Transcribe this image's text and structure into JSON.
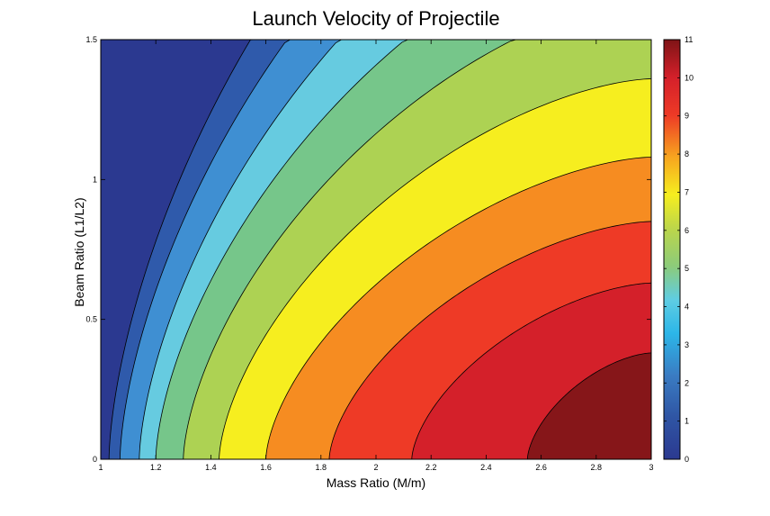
{
  "chart_data": {
    "type": "contourf",
    "title": "Launch Velocity of Projectile",
    "xlabel": "Mass Ratio (M/m)",
    "ylabel": "Beam Ratio (L1/L2)",
    "xlim": [
      1,
      3
    ],
    "ylim": [
      0,
      1.5
    ],
    "xticks": [
      "1",
      "1.2",
      "1.4",
      "1.6",
      "1.8",
      "2",
      "2.2",
      "2.4",
      "2.6",
      "2.8",
      "3"
    ],
    "yticks": [
      "0",
      "0.5",
      "1",
      "1.5"
    ],
    "colorbar": {
      "ticks": [
        "0",
        "1",
        "2",
        "3",
        "4",
        "5",
        "6",
        "7",
        "8",
        "9",
        "10",
        "11"
      ],
      "range": [
        0,
        11
      ],
      "colormap": "jet"
    },
    "levels": [
      {
        "range": "0-1",
        "color": "#2b3990"
      },
      {
        "range": "1-2",
        "color": "#2f5aab"
      },
      {
        "range": "2-3",
        "color": "#3f8fd2"
      },
      {
        "range": "3-4",
        "color": "#66cbe0"
      },
      {
        "range": "4-5",
        "color": "#76c68a"
      },
      {
        "range": "5-6",
        "color": "#add253"
      },
      {
        "range": "6-7",
        "color": "#f6ee1f"
      },
      {
        "range": "7-8",
        "color": "#f68c21"
      },
      {
        "range": "8-9",
        "color": "#ee3a26"
      },
      {
        "range": "9-10",
        "color": "#d4202a"
      },
      {
        "range": "10-11",
        "color": "#861619"
      }
    ],
    "contour_bottom_crossings_x": [
      1.03,
      1.07,
      1.14,
      1.2,
      1.3,
      1.43,
      1.6,
      1.83,
      2.13,
      2.55
    ],
    "contour_right_crossings_y": [
      1.5,
      1.5,
      1.5,
      1.5,
      1.5,
      1.36,
      1.08,
      0.85,
      0.63,
      0.38
    ]
  }
}
